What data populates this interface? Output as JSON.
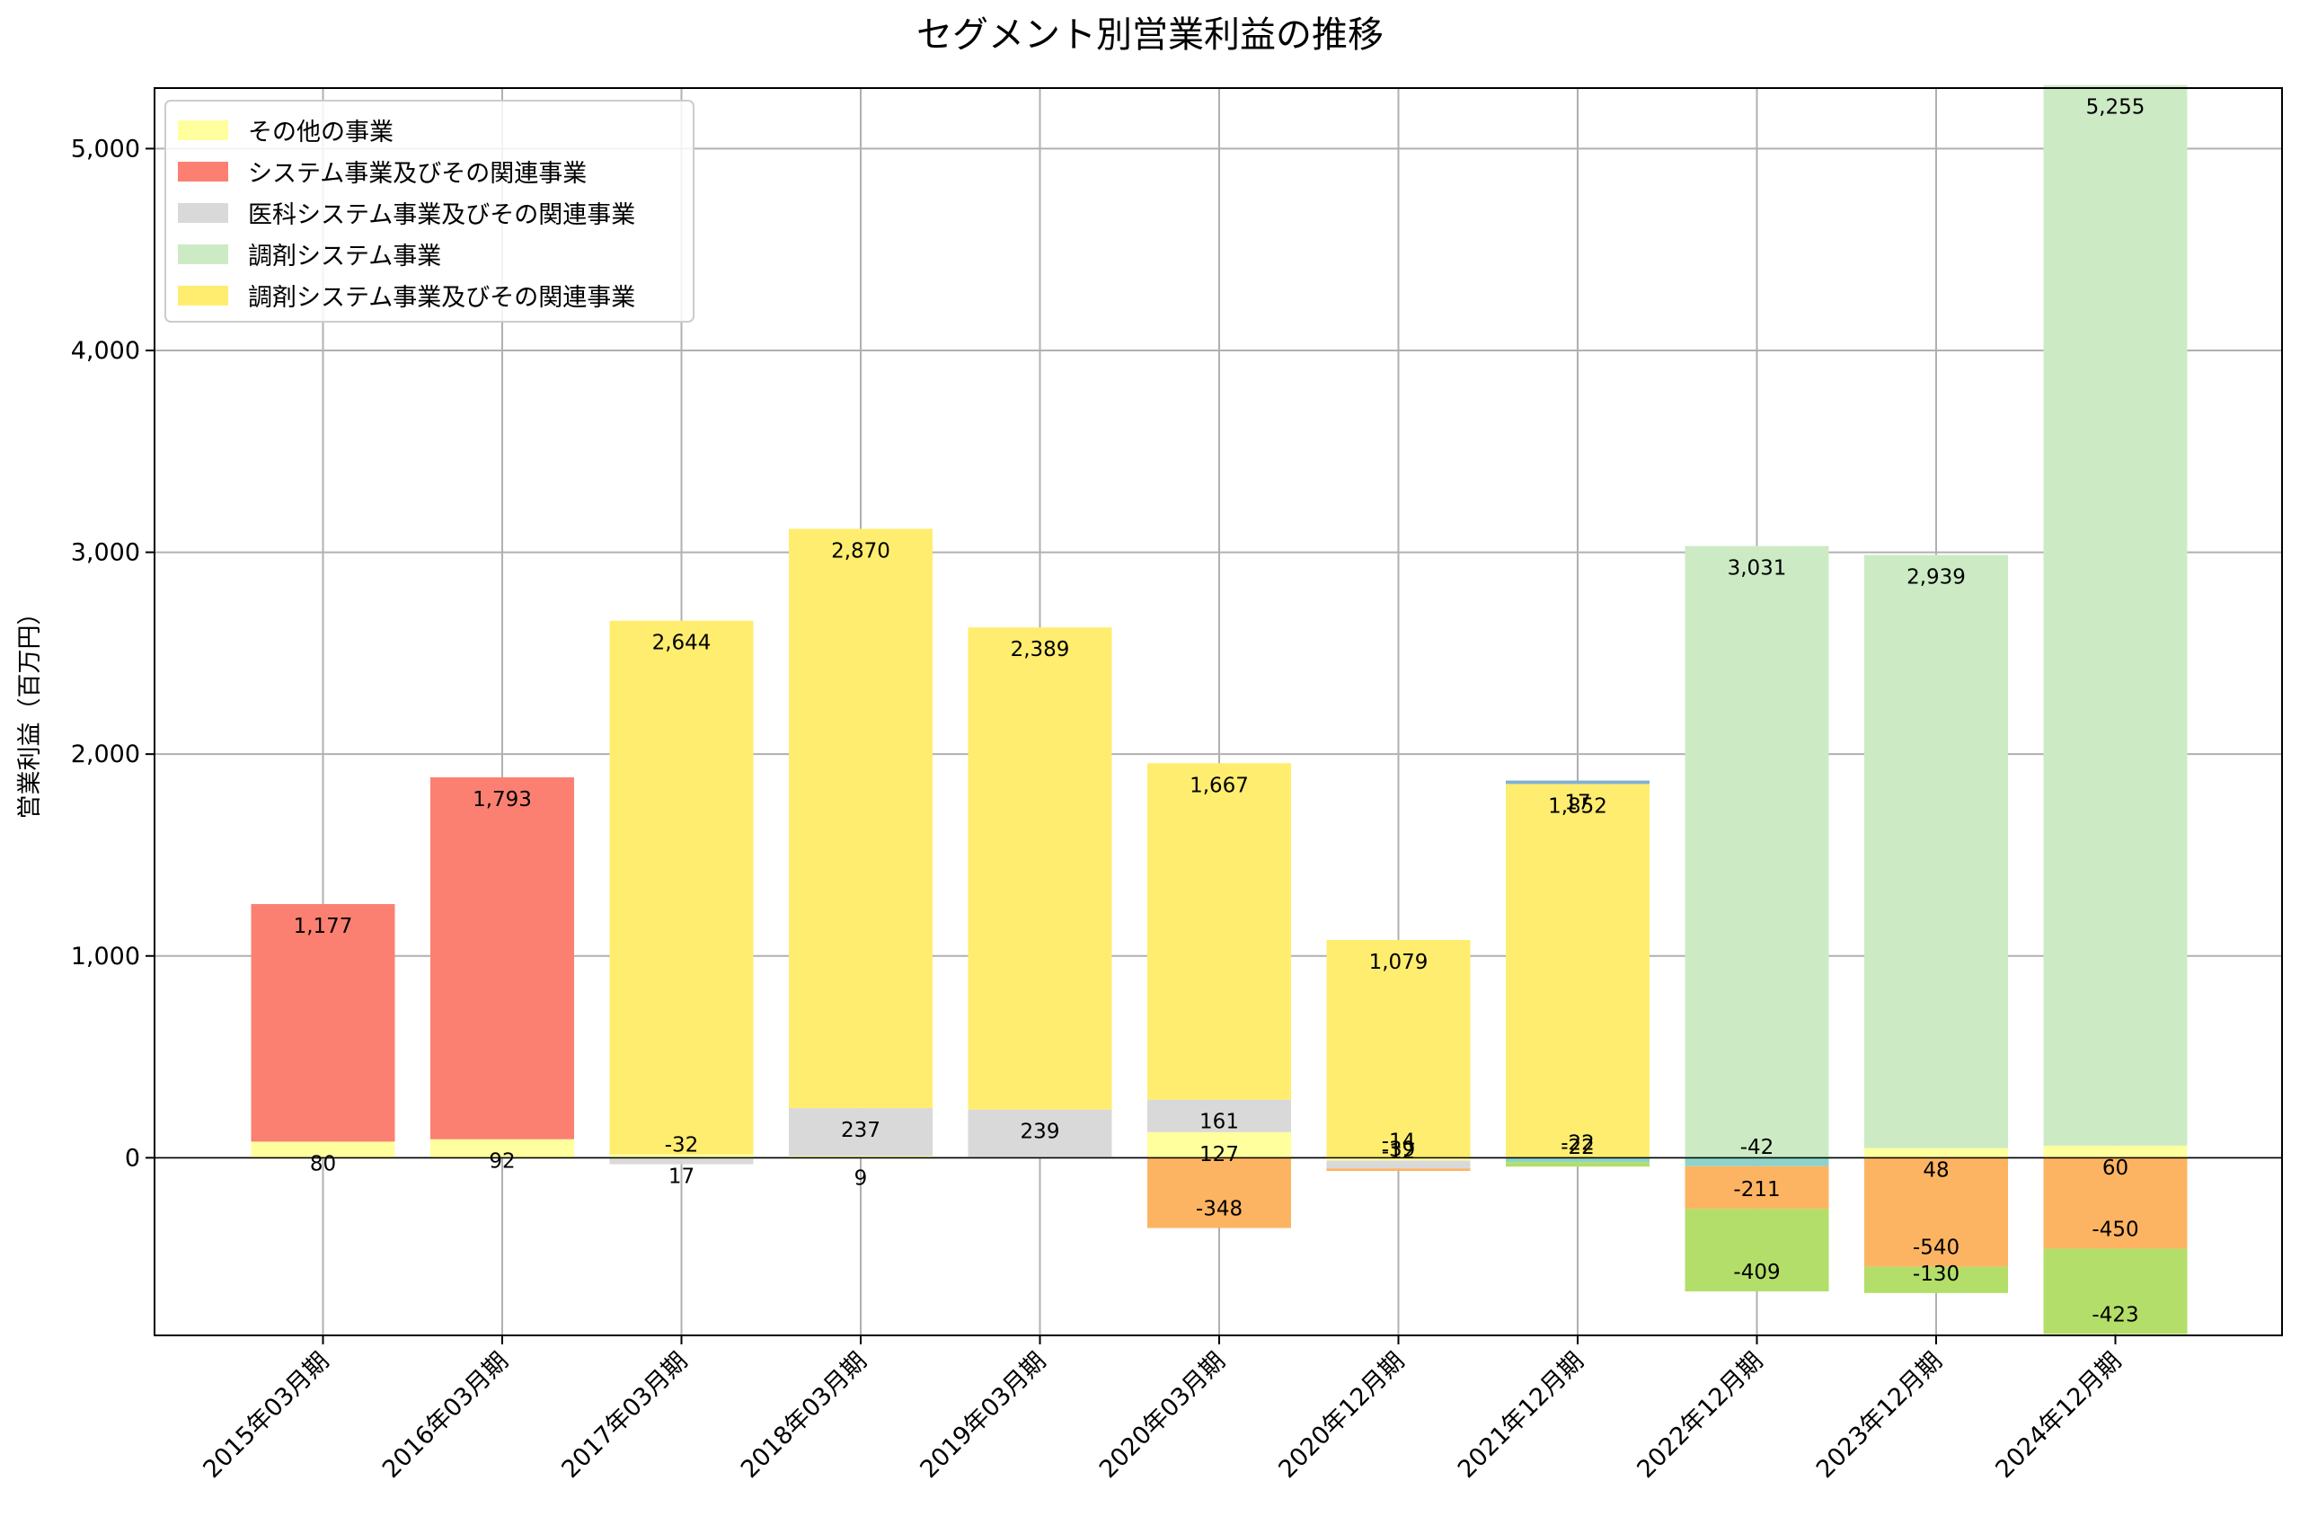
{
  "chart_data": {
    "type": "bar",
    "stacked": true,
    "title": "セグメント別営業利益の推移",
    "xlabel": "",
    "ylabel": "営業利益（百万円）",
    "ylim": [
      -880,
      5300
    ],
    "yticks": [
      0,
      1000,
      2000,
      3000,
      4000,
      5000
    ],
    "ytick_labels": [
      "0",
      "1,000",
      "2,000",
      "3,000",
      "4,000",
      "5,000"
    ],
    "grid": true,
    "legend_position": "top-left",
    "categories": [
      "2015年03月期",
      "2016年03月期",
      "2017年03月期",
      "2018年03月期",
      "2019年03月期",
      "2020年03月期",
      "2020年12月期",
      "2021年12月期",
      "2022年12月期",
      "2023年12月期",
      "2024年12月期"
    ],
    "series": [
      {
        "name": "その他の事業",
        "color": "#ffff9e",
        "legend": true,
        "values": [
          80,
          92,
          17,
          9,
          null,
          127,
          -14,
          null,
          null,
          48,
          60
        ],
        "labels": [
          "80",
          "92",
          "17",
          "9",
          null,
          "127",
          "-14",
          null,
          null,
          "48",
          "60"
        ]
      },
      {
        "name": "システム事業及びその関連事業",
        "color": "#fb8072",
        "legend": true,
        "values": [
          1177,
          1793,
          null,
          null,
          null,
          null,
          null,
          null,
          null,
          null,
          null
        ],
        "labels": [
          "1,177",
          "1,793",
          null,
          null,
          null,
          null,
          null,
          null,
          null,
          null,
          null
        ]
      },
      {
        "name": "医科システム事業及びその関連事業",
        "color": "#d9d9d9",
        "legend": true,
        "values": [
          null,
          null,
          -32,
          237,
          239,
          161,
          -39,
          null,
          null,
          null,
          null
        ],
        "labels": [
          null,
          null,
          "-32",
          "237",
          "239",
          "161",
          "-39",
          null,
          null,
          null,
          null
        ]
      },
      {
        "name": "調剤システム事業",
        "color": "#ccebc5",
        "legend": true,
        "values": [
          null,
          null,
          null,
          null,
          null,
          null,
          null,
          null,
          3031,
          2939,
          5255
        ],
        "labels": [
          null,
          null,
          null,
          null,
          null,
          null,
          null,
          null,
          "3,031",
          "2,939",
          "5,255"
        ]
      },
      {
        "name": "調剤システム事業及びその関連事業",
        "color": "#ffed6f",
        "legend": true,
        "values": [
          null,
          null,
          2644,
          2870,
          2389,
          1667,
          1079,
          1852,
          null,
          null,
          null
        ],
        "labels": [
          null,
          null,
          "2,644",
          "2,870",
          "2,389",
          "1,667",
          "1,079",
          "1,852",
          null,
          null,
          null
        ]
      },
      {
        "name": "",
        "color": "#80b1d3",
        "legend": false,
        "values": [
          null,
          null,
          null,
          null,
          null,
          null,
          null,
          17,
          null,
          null,
          null
        ],
        "labels": [
          null,
          null,
          null,
          null,
          null,
          null,
          null,
          "17",
          null,
          null,
          null
        ]
      },
      {
        "name": "",
        "color": "#8dd3c7",
        "legend": false,
        "values": [
          null,
          null,
          null,
          null,
          null,
          null,
          null,
          -22,
          -42,
          null,
          null
        ],
        "labels": [
          null,
          null,
          null,
          null,
          null,
          null,
          null,
          "-22",
          "-42",
          null,
          null
        ]
      },
      {
        "name": "",
        "color": "#fdb462",
        "legend": false,
        "values": [
          null,
          null,
          null,
          null,
          null,
          -348,
          -12,
          null,
          -211,
          -540,
          -450
        ],
        "labels": [
          null,
          null,
          null,
          null,
          null,
          "-348",
          "-12",
          null,
          "-211",
          "-540",
          "-450"
        ]
      },
      {
        "name": "",
        "color": "#b3de69",
        "legend": false,
        "values": [
          null,
          null,
          null,
          null,
          null,
          null,
          null,
          -22,
          -409,
          -130,
          -423
        ],
        "labels": [
          null,
          null,
          null,
          null,
          null,
          null,
          null,
          "-22",
          "-409",
          "-130",
          "-423"
        ]
      }
    ]
  }
}
